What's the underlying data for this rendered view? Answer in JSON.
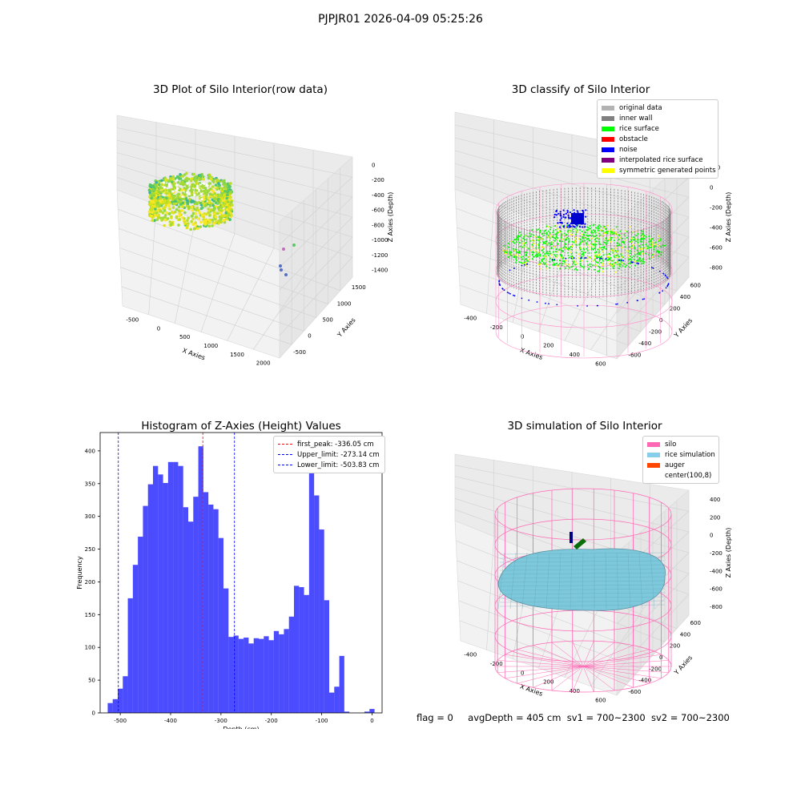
{
  "figure": {
    "suptitle": "PJPJR01 2026-04-09 05:25:26",
    "footer": {
      "flag": "flag = 0",
      "avg_depth": "avgDepth = 405 cm",
      "sv1": "sv1 = 700~2300",
      "sv2": "sv2 = 700~2300"
    }
  },
  "panels": {
    "raw": {
      "title": "3D Plot of Silo Interior(row data)",
      "xlabel": "X Axies",
      "ylabel": "Y Axies",
      "zlabel": "Z Axies (Depth)",
      "xticks": [
        "-500",
        "0",
        "500",
        "1000",
        "1500",
        "2000"
      ],
      "yticks": [
        "-500",
        "0",
        "500",
        "1000",
        "1500"
      ],
      "zticks": [
        "0",
        "-200",
        "-400",
        "-600",
        "-800",
        "-1000",
        "-1200",
        "-1400"
      ]
    },
    "classify": {
      "title": "3D classify of Silo Interior",
      "xlabel": "X Axies",
      "ylabel": "Y Axies",
      "zlabel": "Z Axies (Depth)",
      "xticks": [
        "-400",
        "-200",
        "0",
        "200",
        "400",
        "600"
      ],
      "yticks": [
        "-600",
        "-400",
        "-200",
        "0",
        "200",
        "400",
        "600"
      ],
      "zticks": [
        "200",
        "0",
        "-200",
        "-400",
        "-600",
        "-800"
      ],
      "legend_top": "400",
      "legend": [
        {
          "label": "original data",
          "color": "#b3b3b3"
        },
        {
          "label": "inner wall",
          "color": "#808080"
        },
        {
          "label": "rice surface",
          "color": "#00ff00"
        },
        {
          "label": "obstacle",
          "color": "#ff0000"
        },
        {
          "label": "noise",
          "color": "#0000ff"
        },
        {
          "label": "interpolated rice surface",
          "color": "#800080"
        },
        {
          "label": "symmetric generated points",
          "color": "#ffff00"
        }
      ]
    },
    "simulation": {
      "title": "3D simulation of Silo Interior",
      "xlabel": "X Axies",
      "ylabel": "Y Axies",
      "zlabel": "Z Axies (Depth)",
      "xticks": [
        "-400",
        "-200",
        "0",
        "200",
        "400",
        "600"
      ],
      "yticks": [
        "-600",
        "-400",
        "-200",
        "0",
        "200",
        "400",
        "600"
      ],
      "zticks": [
        "400",
        "200",
        "0",
        "-200",
        "-400",
        "-600",
        "-800"
      ],
      "legend": [
        {
          "label": "silo",
          "color": "#ff69b4"
        },
        {
          "label": "rice simulation",
          "color": "#87ceeb"
        },
        {
          "label": "auger",
          "color": "#ff4500"
        },
        {
          "label": "center(100,8)",
          "color": ""
        }
      ]
    }
  },
  "chart_data": {
    "type": "bar",
    "title": "Histogram of Z-Axies (Height) Values",
    "xlabel": "Depth (cm)",
    "ylabel": "Frequency",
    "xlim": [
      -540,
      20
    ],
    "ylim": [
      0,
      428
    ],
    "bin_start": -525,
    "bin_width": 10,
    "values": [
      15,
      21,
      37,
      56,
      175,
      226,
      269,
      316,
      349,
      377,
      364,
      351,
      383,
      383,
      377,
      314,
      292,
      330,
      407,
      337,
      318,
      311,
      267,
      190,
      116,
      118,
      113,
      115,
      106,
      114,
      113,
      117,
      111,
      125,
      120,
      128,
      147,
      194,
      192,
      180,
      372,
      332,
      280,
      172,
      31,
      40,
      87,
      2,
      0,
      0,
      0,
      2,
      6
    ],
    "xticks": [
      -500,
      -400,
      -300,
      -200,
      -100,
      0
    ],
    "yticks": [
      0,
      50,
      100,
      150,
      200,
      250,
      300,
      350,
      400
    ],
    "bar_color": "#0000ff",
    "vlines": [
      {
        "label": "first_peak: -336.05 cm",
        "x": -336.05,
        "color": "#ff0000"
      },
      {
        "label": "Upper_limit: -273.14 cm",
        "x": -273.14,
        "color": "#0000ff"
      },
      {
        "label": "Lower_limit: -503.83 cm",
        "x": -503.83,
        "color": "#0000ff"
      }
    ],
    "legend_position": "upper right"
  }
}
